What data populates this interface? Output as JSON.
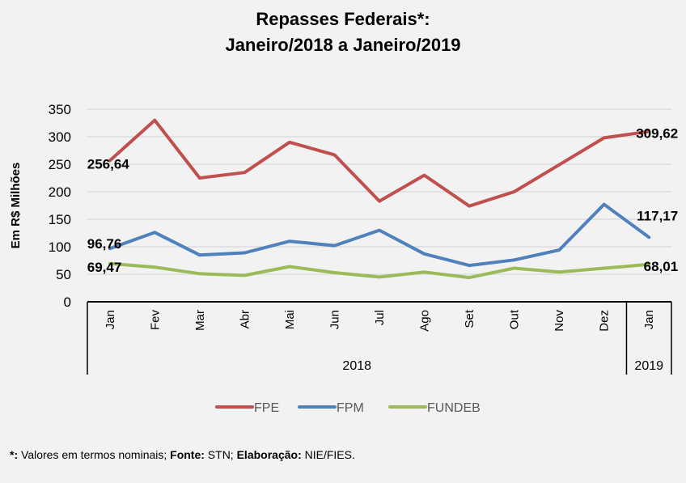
{
  "chart_data": {
    "type": "line",
    "title": [
      "Repasses Federais*:",
      "Janeiro/2018 a Janeiro/2019"
    ],
    "xlabel": "",
    "ylabel": "Em R$ Milhões",
    "ylim": [
      0,
      350
    ],
    "yticks": [
      0,
      50,
      100,
      150,
      200,
      250,
      300,
      350
    ],
    "grid": true,
    "legend_position": "bottom",
    "categories": [
      "Jan",
      "Fev",
      "Mar",
      "Abr",
      "Mai",
      "Jun",
      "Jul",
      "Ago",
      "Set",
      "Out",
      "Nov",
      "Dez",
      "Jan"
    ],
    "groups": [
      {
        "label": "2018",
        "count": 12
      },
      {
        "label": "2019",
        "count": 1
      }
    ],
    "series": [
      {
        "name": "FPE",
        "color": "#c0504d",
        "values": [
          256.64,
          330,
          225,
          235,
          290,
          267,
          183,
          230,
          174,
          200,
          249,
          298,
          309.62
        ]
      },
      {
        "name": "FPM",
        "color": "#4f81bd",
        "values": [
          96.76,
          126,
          85,
          89,
          110,
          102,
          130,
          87,
          66,
          76,
          94,
          177,
          117.17
        ]
      },
      {
        "name": "FUNDEB",
        "color": "#9bbb59",
        "values": [
          69.47,
          63,
          51,
          48,
          64,
          53,
          45,
          54,
          44,
          61,
          54,
          61,
          68.01
        ]
      }
    ],
    "data_labels": [
      {
        "series": "FPE",
        "index": 0,
        "text": "256,64"
      },
      {
        "series": "FPE",
        "index": 12,
        "text": "309,62"
      },
      {
        "series": "FPM",
        "index": 0,
        "text": "96,76"
      },
      {
        "series": "FPM",
        "index": 12,
        "text": "117,17"
      },
      {
        "series": "FUNDEB",
        "index": 0,
        "text": "69,47"
      },
      {
        "series": "FUNDEB",
        "index": 12,
        "text": "68,01"
      }
    ]
  },
  "footnote": {
    "star": "*:",
    "text1": " Valores em termos nominais; ",
    "fonte_label": "Fonte:",
    "fonte_value": " STN; ",
    "elab_label": "Elaboração:",
    "elab_value": " NIE/FIES."
  }
}
